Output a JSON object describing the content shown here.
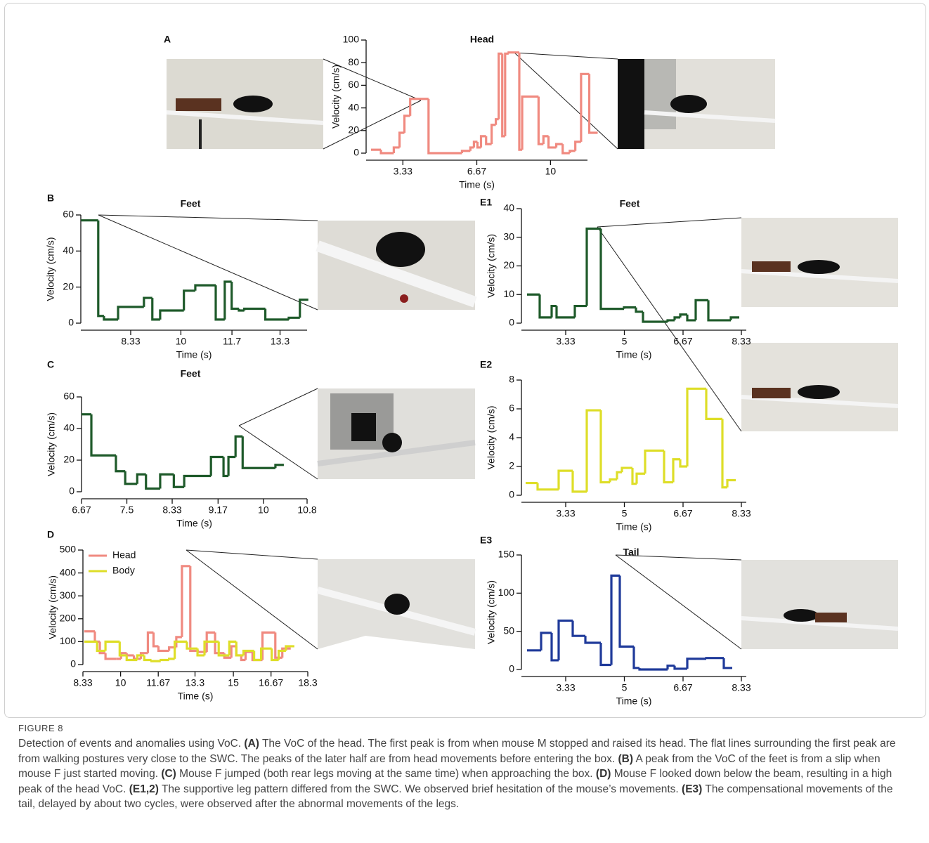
{
  "figure_label": "FIGURE 8",
  "caption_lead": "Detection of events and anomalies using VoC.",
  "caption_items": [
    {
      "label": "(A)",
      "text": "The VoC of the head. The first peak is from when mouse M stopped and raised its head. The flat lines surrounding the first peak are from walking postures very close to the SWC. The peaks of the later half are from head movements before entering the box."
    },
    {
      "label": "(B)",
      "text": "A peak from the VoC of the feet is from a slip when mouse F just started moving."
    },
    {
      "label": "(C)",
      "text": "Mouse F jumped (both rear legs moving at the same time) when approaching the box."
    },
    {
      "label": "(D)",
      "text": "Mouse F looked down below the beam, resulting in a high peak of the head VoC."
    },
    {
      "label": "(E1,2)",
      "text": "The supportive leg pattern differed from the SWC. We observed brief hesitation of the mouse’s movements."
    },
    {
      "label": "(E3)",
      "text": "The compensational movements of the tail, delayed by about two cycles, were observed after the abnormal movements of the legs."
    }
  ],
  "chart_data": [
    {
      "type": "step",
      "panel_label": "A",
      "title": "Head",
      "xlabel": "Time (s)",
      "ylabel": "Velocity (cm/s)",
      "x": [
        1.89,
        2.34,
        2.92,
        3.18,
        3.4,
        3.66,
        4.49,
        6.0,
        6.38,
        6.54,
        6.7,
        6.86,
        7.09,
        7.34,
        7.53,
        7.66,
        7.82,
        7.95,
        8.11,
        8.59,
        8.72,
        9.46,
        9.68,
        9.91,
        10.26,
        10.55,
        10.87,
        11.12,
        11.38,
        11.75
      ],
      "values": [
        3,
        0,
        5,
        18,
        33,
        48,
        0,
        2,
        5,
        10,
        5,
        15,
        8,
        25,
        30,
        88,
        15,
        88,
        89,
        3,
        50,
        8,
        15,
        5,
        8,
        0,
        2,
        10,
        70,
        18
      ],
      "color": "#f08a80",
      "xlim": [
        1.67,
        11.67
      ],
      "ylim": [
        0,
        100
      ],
      "xticks": [
        3.33,
        6.67,
        10
      ],
      "yticks": [
        0,
        20,
        40,
        60,
        80,
        100
      ]
    },
    {
      "type": "step",
      "panel_label": "B",
      "title": "Feet",
      "xlabel": "Time (s)",
      "ylabel": "Velocity (cm/s)",
      "x": [
        6.67,
        7.25,
        7.44,
        7.91,
        8.77,
        9.05,
        9.31,
        10.1,
        10.48,
        11.16,
        11.46,
        11.69,
        11.93,
        12.11,
        12.81,
        13.59,
        13.96
      ],
      "values": [
        57,
        4,
        2,
        9,
        14,
        2,
        7,
        18,
        21,
        2,
        23,
        8,
        7,
        8,
        2,
        3,
        13
      ],
      "color": "#1e5a2a",
      "xlim": [
        6.67,
        14.2
      ],
      "ylim": [
        0,
        60
      ],
      "xticks": [
        8.33,
        10,
        11.7,
        13.3
      ],
      "yticks": [
        0,
        20,
        40,
        60
      ]
    },
    {
      "type": "step",
      "panel_label": "C",
      "title": "Feet",
      "xlabel": "Time (s)",
      "ylabel": "Velocity (cm/s)",
      "x": [
        6.67,
        6.85,
        7.3,
        7.47,
        7.69,
        7.85,
        8.11,
        8.36,
        8.55,
        9.04,
        9.27,
        9.36,
        9.49,
        9.62,
        10.22
      ],
      "values": [
        49,
        23,
        13,
        5,
        11,
        2,
        11,
        3,
        10,
        22,
        10,
        22,
        35,
        15,
        17
      ],
      "color": "#1e5a2a",
      "xlim": [
        6.67,
        10.8
      ],
      "ylim": [
        0,
        60
      ],
      "xticks": [
        6.67,
        7.5,
        8.33,
        9.17,
        10,
        10.8
      ],
      "yticks": [
        0,
        20,
        40,
        60
      ]
    },
    {
      "type": "step",
      "panel_label": "D",
      "xlabel": "Time (s)",
      "ylabel": "Velocity (cm/s)",
      "series": [
        {
          "name": "Head",
          "color": "#f08a80",
          "x": [
            8.39,
            8.86,
            9.08,
            9.33,
            9.8,
            10.02,
            10.27,
            10.59,
            10.9,
            11.21,
            11.46,
            11.68,
            12.15,
            12.47,
            12.72,
            13.09,
            13.47,
            13.82,
            14.19,
            14.6,
            14.91,
            15.13,
            15.35,
            15.54,
            15.85,
            16.29,
            16.86,
            17.17
          ],
          "values": [
            145,
            100,
            50,
            25,
            25,
            50,
            40,
            25,
            50,
            140,
            80,
            60,
            75,
            120,
            430,
            60,
            55,
            140,
            50,
            30,
            80,
            40,
            20,
            55,
            20,
            140,
            30,
            70
          ]
        },
        {
          "name": "Body",
          "color": "#dede28",
          "x": [
            8.39,
            8.96,
            9.33,
            9.96,
            10.27,
            10.74,
            11.05,
            11.37,
            11.78,
            12.15,
            12.4,
            12.94,
            13.41,
            13.72,
            14.35,
            14.82,
            15.13,
            15.45,
            15.92,
            16.23,
            16.7,
            17.01,
            17.33
          ],
          "values": [
            100,
            60,
            100,
            40,
            20,
            40,
            20,
            15,
            20,
            25,
            100,
            70,
            40,
            100,
            40,
            100,
            40,
            60,
            20,
            70,
            20,
            60,
            80
          ]
        }
      ],
      "legend": "upper left",
      "xlim": [
        8.33,
        18.3
      ],
      "ylim": [
        0,
        500
      ],
      "xticks": [
        8.33,
        10,
        11.67,
        13.3,
        15,
        16.67,
        18.3
      ],
      "yticks": [
        0,
        100,
        200,
        300,
        400,
        500
      ]
    },
    {
      "type": "step",
      "panel_label": "E1",
      "title": "Feet",
      "xlabel": "Time (s)",
      "ylabel": "Velocity (cm/s)",
      "x": [
        2.23,
        2.59,
        2.93,
        3.07,
        3.59,
        3.93,
        4.33,
        4.99,
        5.33,
        5.53,
        6.23,
        6.43,
        6.59,
        6.79,
        7.03,
        7.39,
        8.03
      ],
      "values": [
        10,
        2,
        6,
        2,
        6,
        33,
        5,
        5.5,
        4,
        0.5,
        1,
        2,
        3,
        1,
        8,
        1,
        2
      ],
      "color": "#1e5a2a",
      "xlim": [
        2.07,
        8.47
      ],
      "ylim": [
        0,
        40
      ],
      "xticks": [
        3.33,
        5,
        6.67,
        8.33
      ],
      "yticks": [
        0,
        10,
        20,
        30,
        40
      ]
    },
    {
      "type": "step",
      "panel_label": "E2",
      "xlabel": "Time (s)",
      "ylabel": "Velocity (cm/s)",
      "x": [
        2.19,
        2.53,
        3.13,
        3.53,
        3.93,
        4.33,
        4.59,
        4.79,
        4.93,
        5.23,
        5.35,
        5.59,
        6.13,
        6.39,
        6.59,
        6.79,
        7.33,
        7.79,
        7.93
      ],
      "values": [
        0.85,
        0.4,
        1.7,
        0.25,
        5.9,
        0.9,
        1.1,
        1.6,
        1.9,
        0.8,
        1.5,
        3.1,
        0.9,
        2.5,
        2,
        7.4,
        5.3,
        0.55,
        1.05
      ],
      "color": "#dede28",
      "xlim": [
        2.07,
        8.47
      ],
      "ylim": [
        0,
        8
      ],
      "xticks": [
        3.33,
        5,
        6.67,
        8.33
      ],
      "yticks": [
        0,
        2,
        4,
        6,
        8
      ]
    },
    {
      "type": "step",
      "panel_label": "E3",
      "title": "Tail",
      "xlabel": "Time (s)",
      "ylabel": "Velocity (cm/s)",
      "x": [
        2.23,
        2.63,
        2.93,
        3.13,
        3.53,
        3.89,
        4.33,
        4.63,
        4.87,
        5.27,
        5.43,
        6.23,
        6.43,
        6.79,
        7.33,
        7.83
      ],
      "values": [
        25,
        48,
        12,
        64,
        44,
        35,
        6,
        123,
        30,
        2,
        0,
        5,
        1,
        14,
        15,
        2
      ],
      "color": "#1f3a9a",
      "xlim": [
        2.07,
        8.47
      ],
      "ylim": [
        0,
        150
      ],
      "xticks": [
        3.33,
        5,
        6.67,
        8.33
      ],
      "yticks": [
        0,
        50,
        100,
        150
      ]
    }
  ]
}
